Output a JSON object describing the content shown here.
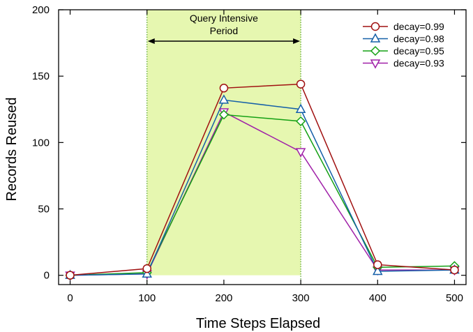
{
  "chart_data": {
    "type": "line",
    "xlabel": "Time Steps Elapsed",
    "ylabel": "Records Reused",
    "xlim": [
      -15,
      515
    ],
    "ylim": [
      -7,
      200
    ],
    "xticks": [
      0,
      100,
      200,
      300,
      400,
      500
    ],
    "yticks": [
      0,
      50,
      100,
      150,
      200
    ],
    "x": [
      0,
      100,
      200,
      300,
      400,
      500
    ],
    "series": [
      {
        "name": "decay=0.99",
        "values": [
          0,
          5,
          141,
          144,
          8,
          4
        ],
        "color": "#a01010",
        "marker": "circle"
      },
      {
        "name": "decay=0.98",
        "values": [
          0,
          1,
          132,
          125,
          3,
          4
        ],
        "color": "#1560a8",
        "marker": "triangle-up"
      },
      {
        "name": "decay=0.95",
        "values": [
          0,
          2,
          121,
          116,
          6,
          7
        ],
        "color": "#14a014",
        "marker": "diamond"
      },
      {
        "name": "decay=0.93",
        "values": [
          0,
          1,
          123,
          93,
          4,
          4
        ],
        "color": "#a020a8",
        "marker": "triangle-down"
      }
    ],
    "annotation": {
      "text_line1": "Query Intensive",
      "text_line2": "Period",
      "x_start": 100,
      "x_end": 300,
      "shade_color": "#e6f7b0",
      "line_color": "#2f8f00"
    },
    "legend_position": "top-right",
    "grid": false
  }
}
